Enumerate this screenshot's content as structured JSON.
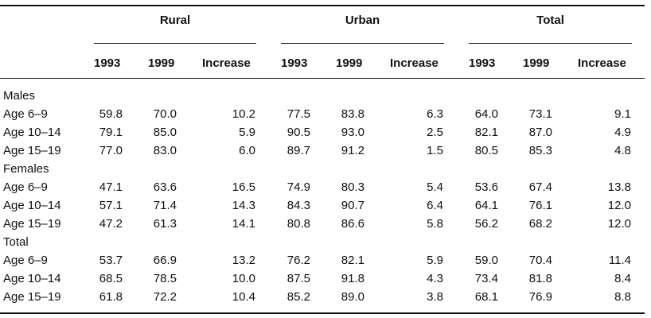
{
  "column_groups": [
    "Rural",
    "Urban",
    "Total"
  ],
  "subheaders": [
    "1993",
    "1999",
    "Increase",
    "1993",
    "1999",
    "Increase",
    "1993",
    "1999",
    "Increase"
  ],
  "sections": [
    {
      "title": "Males",
      "rows": [
        {
          "label": "Age 6–9",
          "values": [
            "59.8",
            "70.0",
            "10.2",
            "77.5",
            "83.8",
            "6.3",
            "64.0",
            "73.1",
            "9.1"
          ]
        },
        {
          "label": "Age 10–14",
          "values": [
            "79.1",
            "85.0",
            "5.9",
            "90.5",
            "93.0",
            "2.5",
            "82.1",
            "87.0",
            "4.9"
          ]
        },
        {
          "label": "Age 15–19",
          "values": [
            "77.0",
            "83.0",
            "6.0",
            "89.7",
            "91.2",
            "1.5",
            "80.5",
            "85.3",
            "4.8"
          ]
        }
      ]
    },
    {
      "title": "Females",
      "rows": [
        {
          "label": "Age 6–9",
          "values": [
            "47.1",
            "63.6",
            "16.5",
            "74.9",
            "80.3",
            "5.4",
            "53.6",
            "67.4",
            "13.8"
          ]
        },
        {
          "label": "Age 10–14",
          "values": [
            "57.1",
            "71.4",
            "14.3",
            "84.3",
            "90.7",
            "6.4",
            "64.1",
            "76.1",
            "12.0"
          ]
        },
        {
          "label": "Age 15–19",
          "values": [
            "47.2",
            "61.3",
            "14.1",
            "80.8",
            "86.6",
            "5.8",
            "56.2",
            "68.2",
            "12.0"
          ]
        }
      ]
    },
    {
      "title": "Total",
      "rows": [
        {
          "label": "Age 6–9",
          "values": [
            "53.7",
            "66.9",
            "13.2",
            "76.2",
            "82.1",
            "5.9",
            "59.0",
            "70.4",
            "11.4"
          ]
        },
        {
          "label": "Age 10–14",
          "values": [
            "68.5",
            "78.5",
            "10.0",
            "87.5",
            "91.8",
            "4.3",
            "73.4",
            "81.8",
            "8.4"
          ]
        },
        {
          "label": "Age 15–19",
          "values": [
            "61.8",
            "72.2",
            "10.4",
            "85.2",
            "89.0",
            "3.8",
            "68.1",
            "76.9",
            "8.8"
          ]
        }
      ]
    }
  ]
}
